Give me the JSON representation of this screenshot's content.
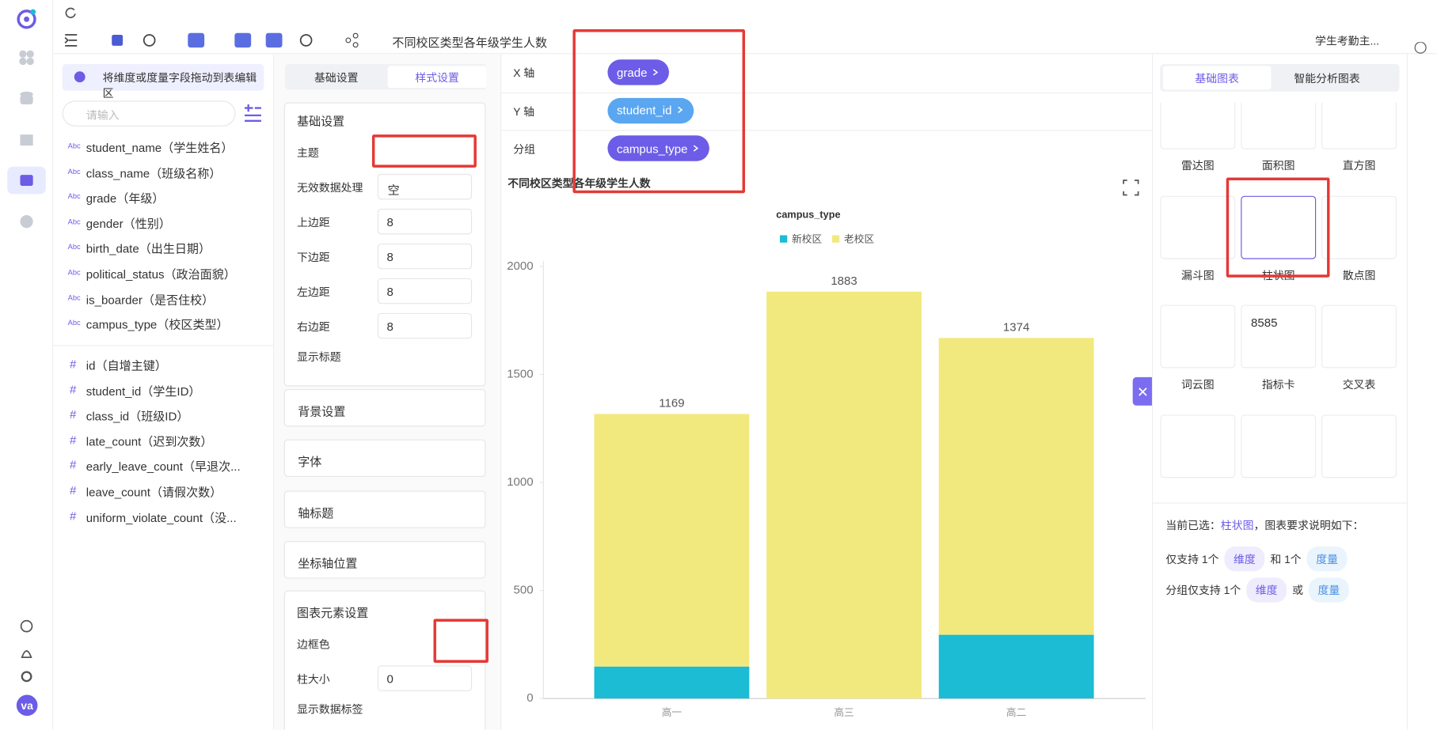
{
  "toolbar": {
    "title": "不同校区类型各年级学生人数",
    "dataset": "学生考勤主..."
  },
  "user": {
    "avatar": "va"
  },
  "field_panel": {
    "hint": "将维度或度量字段拖动到表编辑区",
    "search_placeholder": "请输入",
    "dimensions": [
      {
        "type": "Abc",
        "name": "student_name（学生姓名）"
      },
      {
        "type": "Abc",
        "name": "class_name（班级名称）"
      },
      {
        "type": "Abc",
        "name": "grade（年级）"
      },
      {
        "type": "Abc",
        "name": "gender（性别）"
      },
      {
        "type": "Abc",
        "name": "birth_date（出生日期）"
      },
      {
        "type": "Abc",
        "name": "political_status（政治面貌）"
      },
      {
        "type": "Abc",
        "name": "is_boarder（是否住校）"
      },
      {
        "type": "Abc",
        "name": "campus_type（校区类型）"
      }
    ],
    "measures": [
      {
        "type": "#",
        "name": "id（自增主键）"
      },
      {
        "type": "#",
        "name": "student_id（学生ID）"
      },
      {
        "type": "#",
        "name": "class_id（班级ID）"
      },
      {
        "type": "#",
        "name": "late_count（迟到次数）"
      },
      {
        "type": "#",
        "name": "early_leave_count（早退次..."
      },
      {
        "type": "#",
        "name": "leave_count（请假次数）"
      },
      {
        "type": "#",
        "name": "uniform_violate_count（没..."
      }
    ]
  },
  "settings_panel": {
    "tabs": [
      "基础设置",
      "样式设置"
    ],
    "basic": {
      "title": "基础设置",
      "rows": [
        {
          "label": "主题"
        },
        {
          "label": "无效数据处理",
          "value": "空"
        },
        {
          "label": "上边距",
          "value": 8
        },
        {
          "label": "下边距",
          "value": 8
        },
        {
          "label": "左边距",
          "value": 8
        },
        {
          "label": "右边距",
          "value": 8
        },
        {
          "label": "显示标题"
        }
      ]
    },
    "collapsed_sections": [
      "背景设置",
      "字体",
      "轴标题",
      "坐标轴位置"
    ],
    "elements": {
      "title": "图表元素设置",
      "rows": [
        {
          "label": "边框色"
        },
        {
          "label": "柱大小",
          "value": 0
        },
        {
          "label": "显示数据标签"
        }
      ]
    }
  },
  "encoding": [
    {
      "axis": "X 轴",
      "field": "grade"
    },
    {
      "axis": "Y 轴",
      "field": "student_id"
    },
    {
      "axis": "分组",
      "field": "campus_type"
    }
  ],
  "chart_panel": {
    "tabs": [
      "基础图表",
      "智能分析图表"
    ],
    "types": [
      "雷达图",
      "面积图",
      "直方图",
      "漏斗图",
      "柱状图",
      "散点图",
      "词云图",
      "指标卡",
      "交叉表"
    ],
    "metric_sample": "8585",
    "note": {
      "selected_prefix": "当前已选：",
      "selected": "柱状图",
      "selected_suffix": "，图表要求说明如下：",
      "rule1": [
        "仅支持 1个",
        "维度",
        "和 1个",
        "度量"
      ],
      "rule2": [
        "分组仅支持 1个",
        "维度",
        "或",
        "度量"
      ]
    }
  },
  "chart_data": {
    "type": "bar",
    "stacked": true,
    "title": "不同校区类型各年级学生人数",
    "legend_title": "campus_type",
    "legend": "top",
    "categories": [
      "高一",
      "高三",
      "高二"
    ],
    "series": [
      {
        "name": "新校区",
        "color": "#1bbcd4",
        "values": [
          148,
          null,
          295
        ]
      },
      {
        "name": "老校区",
        "color": "#f2e97e",
        "values": [
          1169,
          1883,
          1374
        ]
      }
    ],
    "ylim": [
      0,
      2000
    ],
    "yticks": [
      0,
      500,
      1000,
      1500,
      2000
    ],
    "grid": false
  }
}
